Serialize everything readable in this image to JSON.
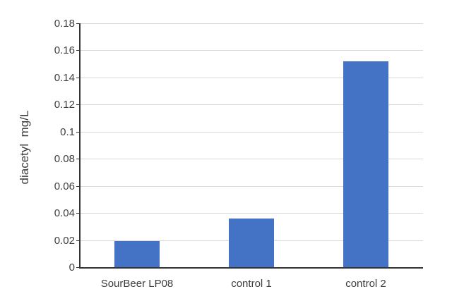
{
  "chart_data": {
    "type": "bar",
    "title": "",
    "ylabel": "diacetyl  mg/L",
    "xlabel": "",
    "categories": [
      "SourBeer LP08",
      "control 1",
      "control 2"
    ],
    "values": [
      0.019,
      0.036,
      0.152
    ],
    "ylim": [
      0,
      0.18
    ],
    "yticks": [
      "0",
      "0.02",
      "0.04",
      "0.06",
      "0.08",
      "0.1",
      "0.12",
      "0.14",
      "0.16",
      "0.18"
    ],
    "grid": "horizontal",
    "legend": "none",
    "bar_color": "#4472c4",
    "gridline_color": "#d9d9d9",
    "axis_color": "#333333",
    "text_color": "#3d3d3d",
    "background_color": "#ffffff"
  }
}
